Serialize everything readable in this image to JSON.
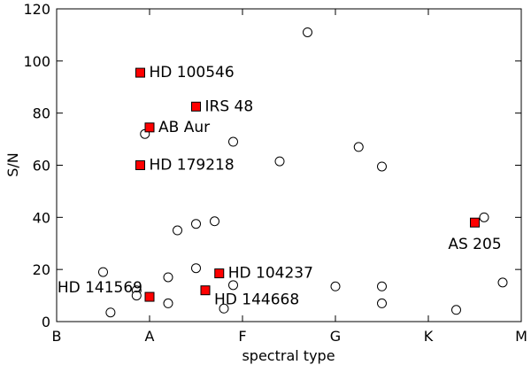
{
  "chart_data": {
    "type": "scatter",
    "xlabel": "spectral type",
    "ylabel": "S/N",
    "ylim": [
      0,
      120
    ],
    "xlim": [
      0,
      5
    ],
    "x_ticks": [
      {
        "value": 0,
        "label": "B"
      },
      {
        "value": 1,
        "label": "A"
      },
      {
        "value": 2,
        "label": "F"
      },
      {
        "value": 3,
        "label": "G"
      },
      {
        "value": 4,
        "label": "K"
      },
      {
        "value": 5,
        "label": "M"
      }
    ],
    "y_ticks": [
      0,
      20,
      40,
      60,
      80,
      100,
      120
    ],
    "grid": false,
    "series": [
      {
        "marker": "circle",
        "color": "#ffffff",
        "points": [
          {
            "x": 0.5,
            "y": 19
          },
          {
            "x": 0.86,
            "y": 12
          },
          {
            "x": 0.86,
            "y": 10
          },
          {
            "x": 0.58,
            "y": 3.5
          },
          {
            "x": 0.95,
            "y": 72
          },
          {
            "x": 1.2,
            "y": 17
          },
          {
            "x": 1.2,
            "y": 7
          },
          {
            "x": 1.3,
            "y": 35
          },
          {
            "x": 1.5,
            "y": 37.5
          },
          {
            "x": 1.5,
            "y": 20.5
          },
          {
            "x": 1.7,
            "y": 38.5
          },
          {
            "x": 1.8,
            "y": 5
          },
          {
            "x": 1.9,
            "y": 69
          },
          {
            "x": 1.9,
            "y": 14
          },
          {
            "x": 2.4,
            "y": 61.5
          },
          {
            "x": 2.7,
            "y": 111
          },
          {
            "x": 3.0,
            "y": 13.5
          },
          {
            "x": 3.25,
            "y": 67
          },
          {
            "x": 3.5,
            "y": 59.5
          },
          {
            "x": 3.5,
            "y": 13.5
          },
          {
            "x": 3.5,
            "y": 7
          },
          {
            "x": 4.3,
            "y": 4.5
          },
          {
            "x": 4.6,
            "y": 40
          },
          {
            "x": 4.8,
            "y": 15
          }
        ]
      },
      {
        "marker": "square",
        "color": "#ff0000",
        "points": [
          {
            "x": 0.9,
            "y": 95.5,
            "label": "HD 100546"
          },
          {
            "x": 1.5,
            "y": 82.5,
            "label": "IRS 48"
          },
          {
            "x": 1.0,
            "y": 74.5,
            "label": "AB Aur"
          },
          {
            "x": 0.9,
            "y": 60,
            "label": "HD 179218"
          },
          {
            "x": 1.75,
            "y": 18.5,
            "label": "HD 104237"
          },
          {
            "x": 1.6,
            "y": 12,
            "label": "HD 144668"
          },
          {
            "x": 1.0,
            "y": 9.5,
            "label": "HD 141569"
          },
          {
            "x": 4.5,
            "y": 38,
            "label": "AS 205"
          }
        ]
      }
    ]
  }
}
